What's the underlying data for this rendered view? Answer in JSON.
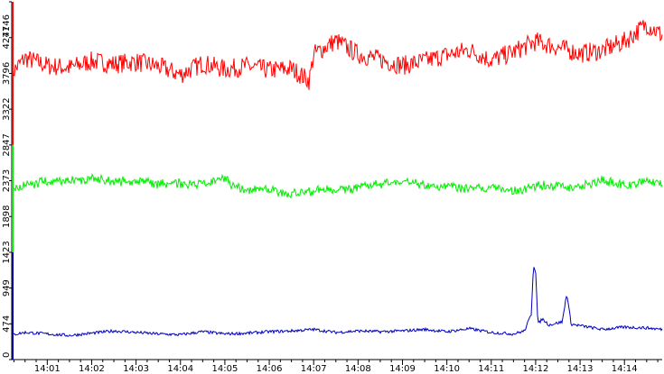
{
  "chart_data": {
    "type": "line",
    "y_ticks": [
      0,
      474,
      949,
      1423,
      1898,
      2373,
      2847,
      3322,
      3796,
      4271,
      4746
    ],
    "y_tick_labels": [
      "0",
      "474",
      "949",
      "1423",
      "1898",
      "2373",
      "2847",
      "3322",
      "3796",
      "4271",
      "4746"
    ],
    "ylim": [
      0,
      4746
    ],
    "x_tick_labels": [
      "14:01",
      "14:02",
      "14:03",
      "14:04",
      "14:05",
      "14:06",
      "14:07",
      "14:08",
      "14:09",
      "14:10",
      "14:11",
      "14:12",
      "14:13",
      "14:14"
    ],
    "x_tick_minutes": [
      1,
      2,
      3,
      4,
      5,
      6,
      7,
      8,
      9,
      10,
      11,
      12,
      13,
      14
    ],
    "xlim_minutes": [
      0.2,
      14.85
    ],
    "grid": false,
    "legend": "none",
    "series": [
      {
        "color": "#ff0000",
        "x_minutes": [
          0.2,
          0.5,
          1.0,
          1.5,
          2.0,
          2.5,
          3.0,
          3.5,
          4.0,
          4.5,
          5.0,
          5.5,
          6.0,
          6.5,
          6.9,
          7.0,
          7.5,
          8.0,
          8.5,
          9.0,
          9.5,
          10.0,
          10.5,
          11.0,
          11.5,
          12.0,
          12.5,
          13.0,
          13.5,
          14.0,
          14.5,
          14.85
        ],
        "values": [
          3800,
          4000,
          3900,
          3870,
          3960,
          3920,
          3950,
          3890,
          3780,
          3930,
          3850,
          3890,
          3840,
          3860,
          3700,
          4050,
          4230,
          4050,
          3980,
          3900,
          3960,
          4040,
          4110,
          3970,
          4080,
          4220,
          4140,
          4060,
          4100,
          4220,
          4450,
          4300
        ]
      },
      {
        "color": "#00ee00",
        "x_minutes": [
          0.2,
          0.5,
          1.0,
          1.5,
          2.0,
          2.5,
          3.0,
          3.5,
          4.0,
          4.5,
          5.0,
          5.2,
          5.5,
          6.0,
          6.5,
          7.0,
          7.5,
          8.0,
          8.5,
          9.0,
          9.5,
          10.0,
          10.5,
          11.0,
          11.5,
          12.0,
          12.5,
          13.0,
          13.5,
          14.0,
          14.5,
          14.85
        ],
        "values": [
          2250,
          2310,
          2370,
          2380,
          2400,
          2360,
          2380,
          2330,
          2340,
          2320,
          2410,
          2290,
          2250,
          2260,
          2200,
          2240,
          2260,
          2270,
          2330,
          2380,
          2300,
          2300,
          2270,
          2280,
          2230,
          2310,
          2300,
          2290,
          2380,
          2300,
          2380,
          2340
        ]
      },
      {
        "color": "#0000bb",
        "x_minutes": [
          0.2,
          0.5,
          1.0,
          1.5,
          2.0,
          2.5,
          3.0,
          3.5,
          4.0,
          4.5,
          5.0,
          5.5,
          6.0,
          6.5,
          7.0,
          7.5,
          8.0,
          8.5,
          9.0,
          9.5,
          10.0,
          10.5,
          11.0,
          11.5,
          11.75,
          11.9,
          11.95,
          12.0,
          12.05,
          12.15,
          12.3,
          12.6,
          12.7,
          12.8,
          13.0,
          13.5,
          14.0,
          14.5,
          14.85
        ],
        "values": [
          330,
          360,
          340,
          320,
          350,
          380,
          360,
          340,
          330,
          370,
          340,
          350,
          370,
          380,
          400,
          360,
          380,
          370,
          380,
          400,
          370,
          410,
          360,
          340,
          380,
          600,
          1250,
          1180,
          470,
          540,
          460,
          500,
          880,
          470,
          450,
          400,
          430,
          420,
          400
        ]
      }
    ]
  }
}
